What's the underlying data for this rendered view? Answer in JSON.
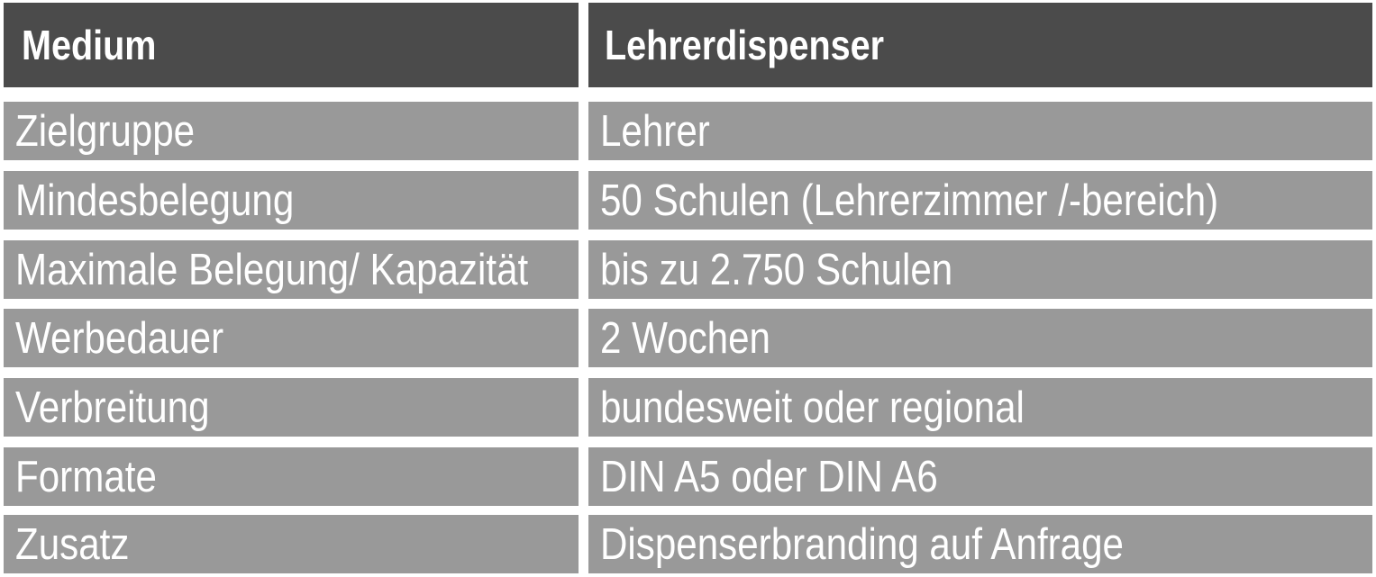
{
  "header": {
    "left": "Medium",
    "right": "Lehrerdispenser"
  },
  "rows": [
    {
      "label": "Zielgruppe",
      "value": "Lehrer"
    },
    {
      "label": "Mindesbelegung",
      "value": "50 Schulen (Lehrerzimmer /-bereich)"
    },
    {
      "label": "Maximale Belegung/ Kapazität",
      "value": "bis zu 2.750 Schulen"
    },
    {
      "label": "Werbedauer",
      "value": "2 Wochen"
    },
    {
      "label": "Verbreitung",
      "value": "bundesweit oder regional"
    },
    {
      "label": "Formate",
      "value": "DIN A5 oder DIN A6"
    },
    {
      "label": "Zusatz",
      "value": "Dispenserbranding auf Anfrage"
    }
  ],
  "colors": {
    "header_bg": "#4b4b4b",
    "row_bg": "#999999",
    "text": "#ffffff"
  }
}
